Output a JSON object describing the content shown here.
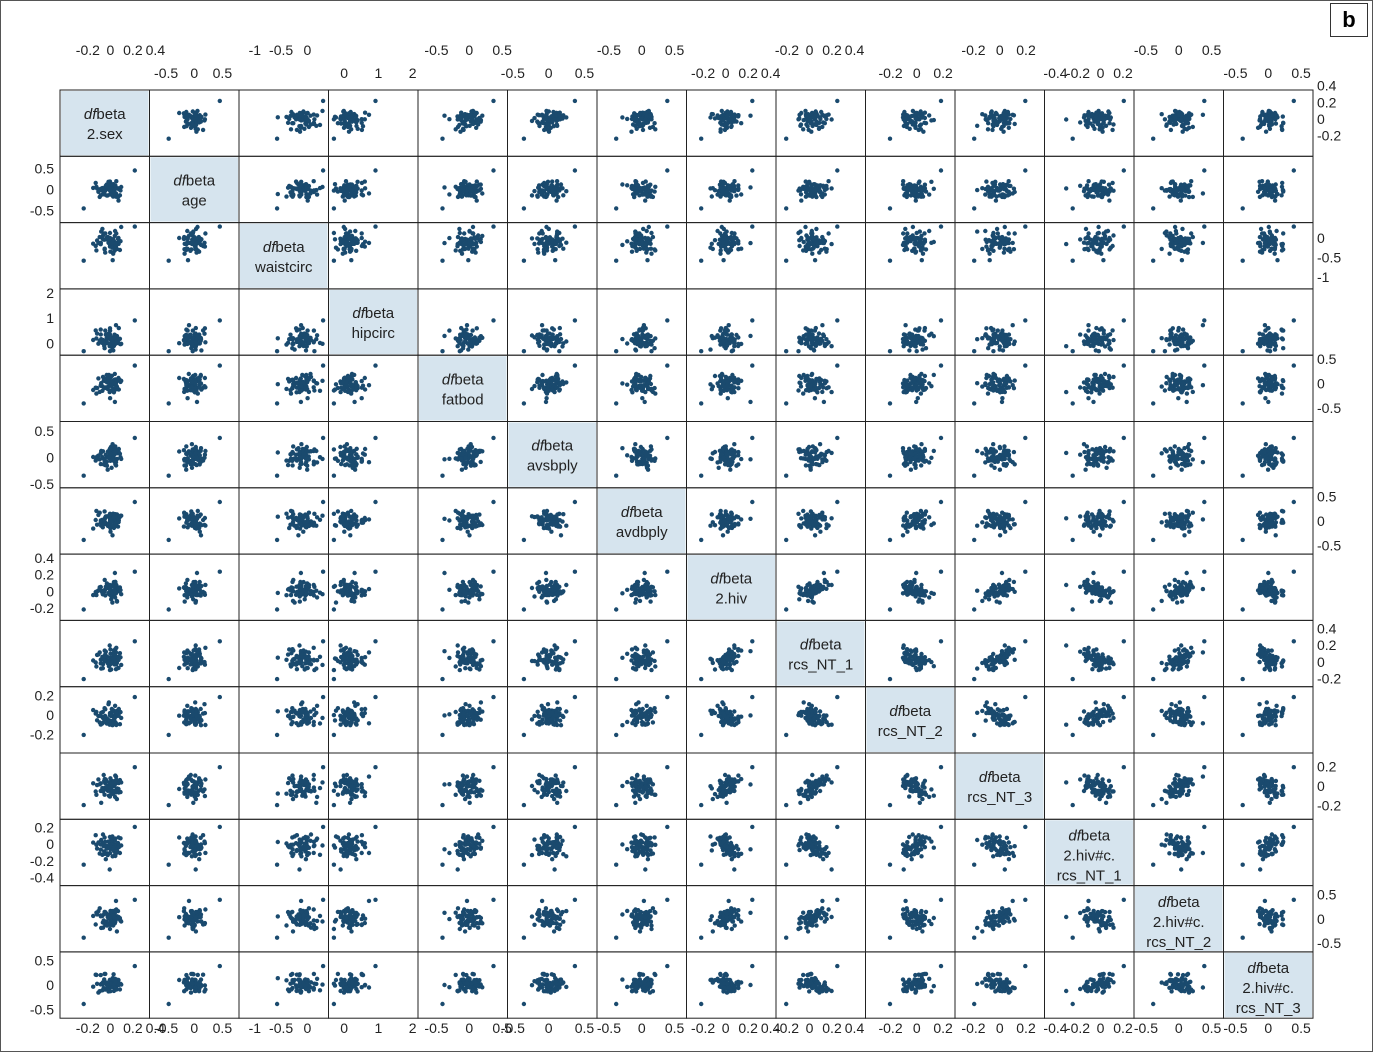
{
  "panel_label": "b",
  "chart_data": {
    "type": "scatter",
    "subtype": "scatterplot-matrix",
    "point_color": "#1a4a6e",
    "diagonal_fill": "#d6e4ee",
    "grid": false,
    "variables": [
      {
        "prefix": "df",
        "suffix": "beta",
        "line2": "2.sex",
        "line3": "",
        "range": [
          -0.4,
          0.3
        ],
        "ticks": [
          "-0.2",
          "0",
          "0.2",
          "0.4"
        ],
        "tick_values": [
          -0.2,
          0,
          0.2,
          0.4
        ]
      },
      {
        "prefix": "df",
        "suffix": "beta",
        "line2": "age",
        "line3": "",
        "range": [
          -0.7,
          0.7
        ],
        "ticks": [
          "-0.5",
          "0",
          "0.5"
        ],
        "tick_values": [
          -0.5,
          0,
          0.5
        ]
      },
      {
        "prefix": "df",
        "suffix": "beta",
        "line2": "waistcirc",
        "line3": "",
        "range": [
          -1.2,
          0.3
        ],
        "ticks": [
          "0",
          "-0.5",
          "-1"
        ],
        "tick_values": [
          0,
          -0.5,
          -1
        ]
      },
      {
        "prefix": "df",
        "suffix": "beta",
        "line2": "hipcirc",
        "line3": "",
        "range": [
          -0.3,
          2.0
        ],
        "ticks": [
          "0",
          "1",
          "2"
        ],
        "tick_values": [
          0,
          1,
          2
        ]
      },
      {
        "prefix": "df",
        "suffix": "beta",
        "line2": "fatbod",
        "line3": "",
        "range": [
          -0.7,
          0.5
        ],
        "ticks": [
          "0.5",
          "0",
          "-0.5"
        ],
        "tick_values": [
          0.5,
          0,
          -0.5
        ]
      },
      {
        "prefix": "df",
        "suffix": "beta",
        "line2": "avsbply",
        "line3": "",
        "range": [
          -0.5,
          0.6
        ],
        "ticks": [
          "0.5",
          "0",
          "-0.5"
        ],
        "tick_values": [
          0.5,
          0,
          -0.5
        ]
      },
      {
        "prefix": "df",
        "suffix": "beta",
        "line2": "avdbply",
        "line3": "",
        "range": [
          -0.6,
          0.6
        ],
        "ticks": [
          "0.5",
          "0",
          "-0.5"
        ],
        "tick_values": [
          0.5,
          0,
          -0.5
        ]
      },
      {
        "prefix": "df",
        "suffix": "beta",
        "line2": "2.hiv",
        "line3": "",
        "range": [
          -0.3,
          0.4
        ],
        "ticks": [
          "-0.2",
          "0",
          "0.2",
          "0.4"
        ],
        "tick_values": [
          -0.2,
          0,
          0.2,
          0.4
        ]
      },
      {
        "prefix": "df",
        "suffix": "beta",
        "line2": "rcs_NT_1",
        "line3": "",
        "range": [
          -0.25,
          0.45
        ],
        "ticks": [
          "0.4",
          "0.2",
          "0",
          "-0.2"
        ],
        "tick_values": [
          0.4,
          0.2,
          0,
          -0.2
        ]
      },
      {
        "prefix": "df",
        "suffix": "beta",
        "line2": "rcs_NT_2",
        "line3": "",
        "range": [
          -0.35,
          0.25
        ],
        "ticks": [
          "0.2",
          "0",
          "-0.2"
        ],
        "tick_values": [
          0.2,
          0,
          -0.2
        ]
      },
      {
        "prefix": "df",
        "suffix": "beta",
        "line2": "rcs_NT_3",
        "line3": "",
        "range": [
          -0.3,
          0.3
        ],
        "ticks": [
          "0.2",
          "0",
          "-0.2"
        ],
        "tick_values": [
          0.2,
          0,
          -0.2
        ]
      },
      {
        "prefix": "df",
        "suffix": "beta",
        "line2": "2.hiv#c.",
        "line3": "rcs_NT_1",
        "range": [
          -0.45,
          0.25
        ],
        "ticks": [
          "0.2",
          "0",
          "-0.2",
          "-0.4"
        ],
        "tick_values": [
          0.2,
          0,
          -0.2,
          -0.4
        ]
      },
      {
        "prefix": "df",
        "suffix": "beta",
        "line2": "2.hiv#c.",
        "line3": "rcs_NT_2",
        "range": [
          -0.6,
          0.6
        ],
        "ticks": [
          "0.5",
          "0",
          "-0.5"
        ],
        "tick_values": [
          0.5,
          0,
          -0.5
        ]
      },
      {
        "prefix": "df",
        "suffix": "beta",
        "line2": "2.hiv#c.",
        "line3": "rcs_NT_3",
        "range": [
          -0.6,
          0.6
        ],
        "ticks": [
          "0.5",
          "0",
          "-0.5"
        ],
        "tick_values": [
          0.5,
          0,
          -0.5
        ]
      }
    ]
  }
}
